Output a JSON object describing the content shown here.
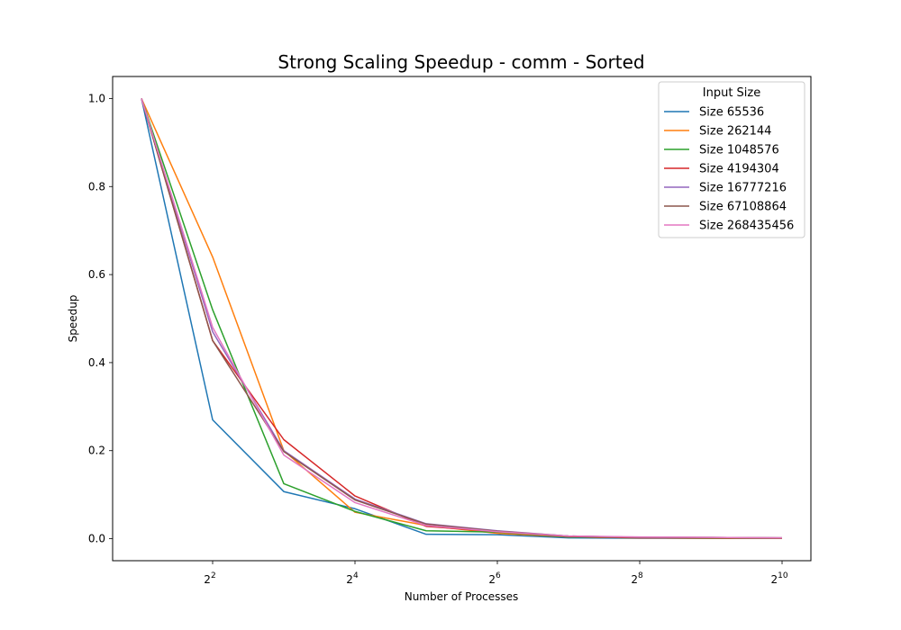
{
  "chart_data": {
    "type": "line",
    "title": "Strong Scaling Speedup - comm - Sorted",
    "xlabel": "Number of Processes",
    "ylabel": "Speedup",
    "xscale": "log2",
    "x": [
      2,
      4,
      8,
      16,
      32,
      64,
      128,
      256,
      512,
      1024
    ],
    "xticks": [
      4,
      16,
      64,
      256,
      1024
    ],
    "xtick_labels": [
      {
        "base": "2",
        "exp": "2"
      },
      {
        "base": "2",
        "exp": "4"
      },
      {
        "base": "2",
        "exp": "6"
      },
      {
        "base": "2",
        "exp": "8"
      },
      {
        "base": "2",
        "exp": "10"
      }
    ],
    "ylim": [
      -0.05,
      1.05
    ],
    "yticks": [
      0.0,
      0.2,
      0.4,
      0.6,
      0.8,
      1.0
    ],
    "ytick_labels": [
      "0.0",
      "0.2",
      "0.4",
      "0.6",
      "0.8",
      "1.0"
    ],
    "grid": false,
    "legend": {
      "title": "Input Size",
      "placement": "top-right"
    },
    "series": [
      {
        "name": "Size 65536",
        "color": "#1f77b4",
        "values": [
          1.0,
          0.27,
          0.107,
          0.068,
          0.01,
          0.009,
          0.002,
          0.001,
          0.001,
          0.001
        ]
      },
      {
        "name": "Size 262144",
        "color": "#ff7f0e",
        "values": [
          1.0,
          0.64,
          0.2,
          0.06,
          0.03,
          0.012,
          0.004,
          0.002,
          0.001,
          0.001
        ]
      },
      {
        "name": "Size 1048576",
        "color": "#2ca02c",
        "values": [
          1.0,
          0.52,
          0.125,
          0.062,
          0.018,
          0.015,
          0.004,
          0.002,
          0.001,
          0.001
        ]
      },
      {
        "name": "Size 4194304",
        "color": "#d62728",
        "values": [
          1.0,
          0.45,
          0.225,
          0.097,
          0.028,
          0.016,
          0.005,
          0.002,
          0.002,
          0.001
        ]
      },
      {
        "name": "Size 16777216",
        "color": "#9467bd",
        "values": [
          1.0,
          0.47,
          0.2,
          0.09,
          0.034,
          0.018,
          0.006,
          0.003,
          0.003,
          0.002
        ]
      },
      {
        "name": "Size 67108864",
        "color": "#8c564b",
        "values": [
          1.0,
          0.45,
          0.198,
          0.088,
          0.033,
          0.017,
          0.006,
          0.003,
          0.003,
          0.002
        ]
      },
      {
        "name": "Size 268435456",
        "color": "#e377c2",
        "values": [
          1.0,
          0.48,
          0.19,
          0.082,
          0.03,
          0.016,
          0.006,
          0.004,
          0.003,
          0.002
        ]
      }
    ]
  }
}
